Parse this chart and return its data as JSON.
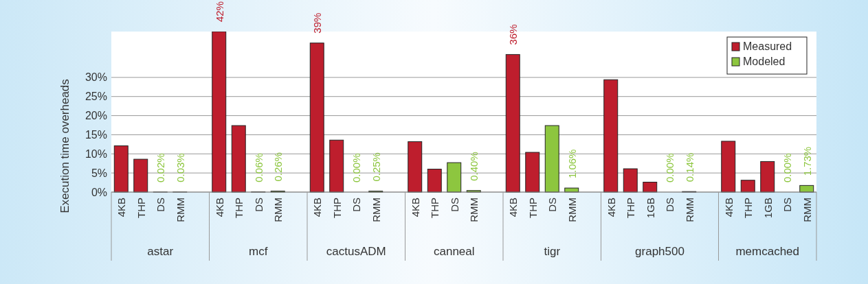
{
  "chart_data": {
    "type": "bar",
    "ylabel": "Execution time overheads",
    "categories": [
      "4KB",
      "THP",
      "DS",
      "RMM",
      null,
      "4KB",
      "THP",
      "DS",
      "RMM",
      null,
      "4KB",
      "THP",
      "DS",
      "RMM",
      null,
      "4KB",
      "THP",
      "DS",
      "RMM",
      null,
      "4KB",
      "THP",
      "DS",
      "RMM",
      null,
      "4KB",
      "THP",
      "1GB",
      "DS",
      "RMM",
      null,
      "4KB",
      "THP",
      "1GB",
      "DS",
      "RMM"
    ],
    "annotations": [
      "astar",
      "mcf",
      "cactusADM",
      "canneal",
      "tigr",
      "graph500",
      "memcached"
    ],
    "series": [
      {
        "name": "Measured",
        "color": "#be1e2d",
        "values": [
          12.1,
          8.6,
          null,
          null,
          null,
          42,
          17.4,
          null,
          null,
          null,
          39,
          13.6,
          null,
          null,
          null,
          13.2,
          6.0,
          null,
          null,
          null,
          36,
          10.4,
          null,
          null,
          null,
          29.4,
          6.1,
          2.6,
          null,
          null,
          null,
          13.3,
          3.1,
          8.0,
          null,
          null
        ],
        "value_labels": [
          null,
          null,
          null,
          null,
          null,
          "42%",
          null,
          null,
          null,
          null,
          "39%",
          null,
          null,
          null,
          null,
          null,
          null,
          null,
          null,
          null,
          "36%",
          null,
          null,
          null,
          null,
          null,
          null,
          null,
          null,
          null,
          null,
          null,
          null,
          null,
          null,
          null
        ]
      },
      {
        "name": "Modeled",
        "color": "#8dc63f",
        "values": [
          null,
          null,
          0.02,
          0.03,
          null,
          null,
          null,
          0.06,
          0.26,
          null,
          null,
          null,
          0.0,
          0.25,
          null,
          null,
          null,
          7.7,
          0.4,
          null,
          null,
          null,
          17.4,
          1.06,
          null,
          null,
          null,
          null,
          0.0,
          0.14,
          null,
          null,
          null,
          null,
          0.0,
          1.73
        ],
        "value_labels": [
          null,
          null,
          "0.02%",
          "0.03%",
          null,
          null,
          null,
          "0.06%",
          "0.26%",
          null,
          null,
          null,
          "0.00%",
          "0.25%",
          null,
          null,
          null,
          null,
          "0.40%",
          null,
          null,
          null,
          null,
          "1.06%",
          null,
          null,
          null,
          null,
          "0.00%",
          "0.14%",
          null,
          null,
          null,
          null,
          "0.00%",
          "1.73%"
        ]
      }
    ],
    "ylim": [
      0,
      42
    ],
    "yticks": [
      {
        "value": 0,
        "label": "0%"
      },
      {
        "value": 5,
        "label": "5%"
      },
      {
        "value": 10,
        "label": "10%"
      },
      {
        "value": 15,
        "label": "15%"
      },
      {
        "value": 20,
        "label": "20%"
      },
      {
        "value": 25,
        "label": "25%"
      },
      {
        "value": 30,
        "label": "30%"
      }
    ],
    "grid": "y",
    "legend": "top right"
  }
}
